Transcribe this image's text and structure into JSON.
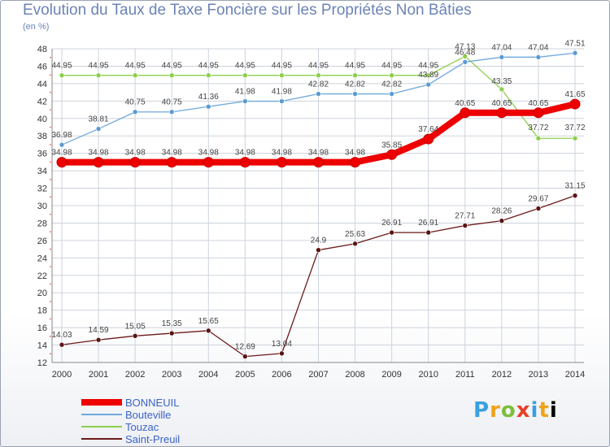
{
  "title": "Evolution du Taux de Taxe Foncière sur les Propriétés Non Bâties",
  "subtitle": "(en %)",
  "logo": "Proxiti",
  "chart_data": {
    "type": "line",
    "title": "Evolution du Taux de Taxe Foncière sur les Propriétés Non Bâties",
    "ylabel": "(en %)",
    "xlabel": "",
    "x": [
      2000,
      2001,
      2002,
      2003,
      2004,
      2005,
      2006,
      2007,
      2008,
      2009,
      2010,
      2011,
      2012,
      2013,
      2014
    ],
    "ylim": [
      12,
      48
    ],
    "yticks": [
      12,
      14,
      16,
      18,
      20,
      22,
      24,
      26,
      28,
      30,
      32,
      34,
      36,
      38,
      40,
      42,
      44,
      46,
      48
    ],
    "grid": true,
    "legend_position": "bottom-left",
    "series": [
      {
        "name": "BONNEUIL",
        "color": "#ee0000",
        "values": [
          34.98,
          34.98,
          34.98,
          34.98,
          34.98,
          34.98,
          34.98,
          34.98,
          34.98,
          35.85,
          37.64,
          40.65,
          40.65,
          40.65,
          41.65
        ],
        "labels": [
          "34.98",
          "34.98",
          "34.98",
          "34.98",
          "34.98",
          "34.98",
          "34.98",
          "34.98",
          "34.98",
          "35.85",
          "37.64",
          "40.65",
          "40.65",
          "40.65",
          "41.65"
        ]
      },
      {
        "name": "Bouteville",
        "color": "#6fa8dc",
        "values": [
          36.98,
          38.81,
          40.75,
          40.75,
          41.36,
          41.98,
          41.98,
          42.82,
          42.82,
          42.82,
          43.89,
          46.48,
          47.04,
          47.04,
          47.51
        ],
        "labels": [
          "36.98",
          "38.81",
          "40.75",
          "40.75",
          "41.36",
          "41.98",
          "41.98",
          "42.82",
          "42.82",
          "42.82",
          "43.89",
          "46.48",
          "47.04",
          "47.04",
          "47.51"
        ]
      },
      {
        "name": "Touzac",
        "color": "#8ccf4d",
        "values": [
          44.95,
          44.95,
          44.95,
          44.95,
          44.95,
          44.95,
          44.95,
          44.95,
          44.95,
          44.95,
          44.95,
          47.13,
          43.35,
          37.72,
          37.72
        ],
        "labels": [
          "44.95",
          "44.95",
          "44.95",
          "44.95",
          "44.95",
          "44.95",
          "44.95",
          "44.95",
          "44.95",
          "44.95",
          "44.95",
          "47.13",
          "43.35",
          "37.72",
          "37.72"
        ]
      },
      {
        "name": "Saint-Preuil",
        "color": "#6b1a1a",
        "values": [
          14.03,
          14.59,
          15.05,
          15.35,
          15.65,
          12.69,
          13.04,
          24.9,
          25.63,
          26.91,
          26.91,
          27.71,
          28.26,
          29.67,
          31.15
        ],
        "labels": [
          "14.03",
          "14.59",
          "15.05",
          "15.35",
          "15.65",
          "12.69",
          "13.04",
          "24.9",
          "25.63",
          "26.91",
          "26.91",
          "27.71",
          "28.26",
          "29.67",
          "31.15"
        ]
      }
    ]
  }
}
